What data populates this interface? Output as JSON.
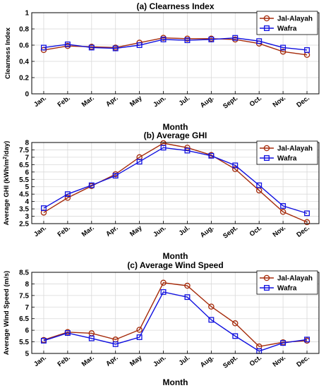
{
  "chart_data": [
    {
      "type": "line",
      "title": "(a) Clearness Index",
      "xlabel": "Month",
      "ylabel": "Clearness Index",
      "ylabel_sup": "",
      "ylabel_tail": "",
      "categories": [
        "Jan.",
        "Feb.",
        "Mar.",
        "Apr.",
        "May",
        "Jun.",
        "Jul.",
        "Aug.",
        "Sept.",
        "Oct.",
        "Nov.",
        "Dec."
      ],
      "ylim": [
        0,
        1
      ],
      "yticks": [
        "0",
        "0.2",
        "0.4",
        "0.6",
        "0.8",
        "1"
      ],
      "grid": true,
      "legend": "top-right",
      "series": [
        {
          "name": "Jal-Alayah",
          "color": "#a52a0a",
          "marker": "circle",
          "values": [
            0.54,
            0.59,
            0.58,
            0.57,
            0.63,
            0.69,
            0.68,
            0.68,
            0.67,
            0.62,
            0.52,
            0.48
          ]
        },
        {
          "name": "Wafra",
          "color": "#1010e0",
          "marker": "square",
          "values": [
            0.57,
            0.61,
            0.57,
            0.56,
            0.6,
            0.67,
            0.66,
            0.67,
            0.69,
            0.65,
            0.57,
            0.54
          ]
        }
      ]
    },
    {
      "type": "line",
      "title": "(b) Average GHI",
      "xlabel": "Month",
      "ylabel": "Average GHI (kWh/m",
      "ylabel_sup": "2",
      "ylabel_tail": "/day)",
      "categories": [
        "Jan.",
        "Feb.",
        "Mar.",
        "Apr.",
        "May",
        "Jun.",
        "Jul.",
        "Aug.",
        "Sept.",
        "Oct.",
        "Nov.",
        "Dec."
      ],
      "ylim": [
        2.5,
        8
      ],
      "yticks": [
        "2.5",
        "3",
        "3.5",
        "4",
        "4.5",
        "5",
        "5.5",
        "6",
        "6.5",
        "7",
        "7.5",
        "8"
      ],
      "grid": true,
      "legend": "top-right",
      "series": [
        {
          "name": "Jal-Alayah",
          "color": "#a52a0a",
          "marker": "circle",
          "values": [
            3.25,
            4.25,
            5.05,
            5.85,
            7.0,
            7.95,
            7.65,
            7.15,
            6.2,
            4.75,
            3.3,
            2.6
          ]
        },
        {
          "name": "Wafra",
          "color": "#1010e0",
          "marker": "square",
          "values": [
            3.55,
            4.5,
            5.1,
            5.75,
            6.7,
            7.65,
            7.45,
            7.1,
            6.45,
            5.1,
            3.7,
            3.2
          ]
        }
      ]
    },
    {
      "type": "line",
      "title": "(c) Average Wind Speed",
      "xlabel": "Month",
      "ylabel": "Average Wind Speed (m/s)",
      "ylabel_sup": "",
      "ylabel_tail": "",
      "categories": [
        "Jan.",
        "Feb.",
        "Mar.",
        "Apr.",
        "May",
        "Jun.",
        "Jul.",
        "Aug.",
        "Sept.",
        "Oct.",
        "Nov.",
        "Dec."
      ],
      "ylim": [
        5,
        8.5
      ],
      "yticks": [
        "5",
        "5.5",
        "6",
        "6.5",
        "7",
        "7.5",
        "8",
        "8.5"
      ],
      "grid": true,
      "legend": "top-right",
      "series": [
        {
          "name": "Jal-Alayah",
          "color": "#a52a0a",
          "marker": "circle",
          "values": [
            5.58,
            5.92,
            5.87,
            5.6,
            6.02,
            8.05,
            7.92,
            7.02,
            6.3,
            5.3,
            5.48,
            5.55
          ]
        },
        {
          "name": "Wafra",
          "color": "#1010e0",
          "marker": "square",
          "values": [
            5.55,
            5.88,
            5.65,
            5.4,
            5.7,
            7.65,
            7.43,
            6.45,
            5.75,
            5.1,
            5.45,
            5.6
          ]
        }
      ]
    }
  ]
}
